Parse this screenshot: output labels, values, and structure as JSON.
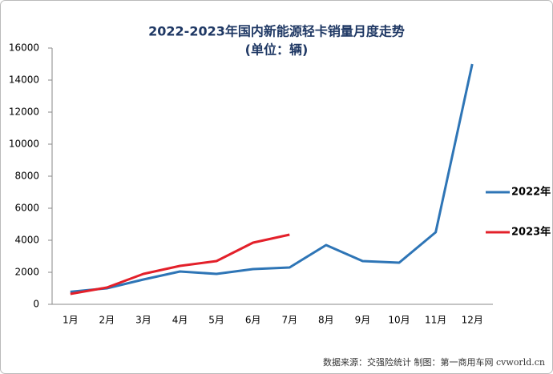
{
  "chart_data": {
    "type": "line",
    "title": "2022-2023年国内新能源轻卡销量月度走势",
    "subtitle": "(单位：辆)",
    "source": "数据来源：交强险统计  制图：第一商用车网 cvworld.cn",
    "categories": [
      "1月",
      "2月",
      "3月",
      "4月",
      "5月",
      "6月",
      "7月",
      "8月",
      "9月",
      "10月",
      "11月",
      "12月"
    ],
    "series": [
      {
        "name": "2022年",
        "color": "#2e75b6",
        "values": [
          780,
          1000,
          1550,
          2050,
          1900,
          2200,
          2300,
          3700,
          2700,
          2600,
          4500,
          15000
        ]
      },
      {
        "name": "2023年",
        "color": "#e3202a",
        "values": [
          650,
          1050,
          1900,
          2400,
          2700,
          3850,
          4350,
          null,
          null,
          null,
          null,
          null
        ]
      }
    ],
    "ylim": [
      0,
      16000
    ],
    "yticks": [
      0,
      2000,
      4000,
      6000,
      8000,
      10000,
      12000,
      14000,
      16000
    ],
    "grid": false,
    "legend": "right"
  }
}
